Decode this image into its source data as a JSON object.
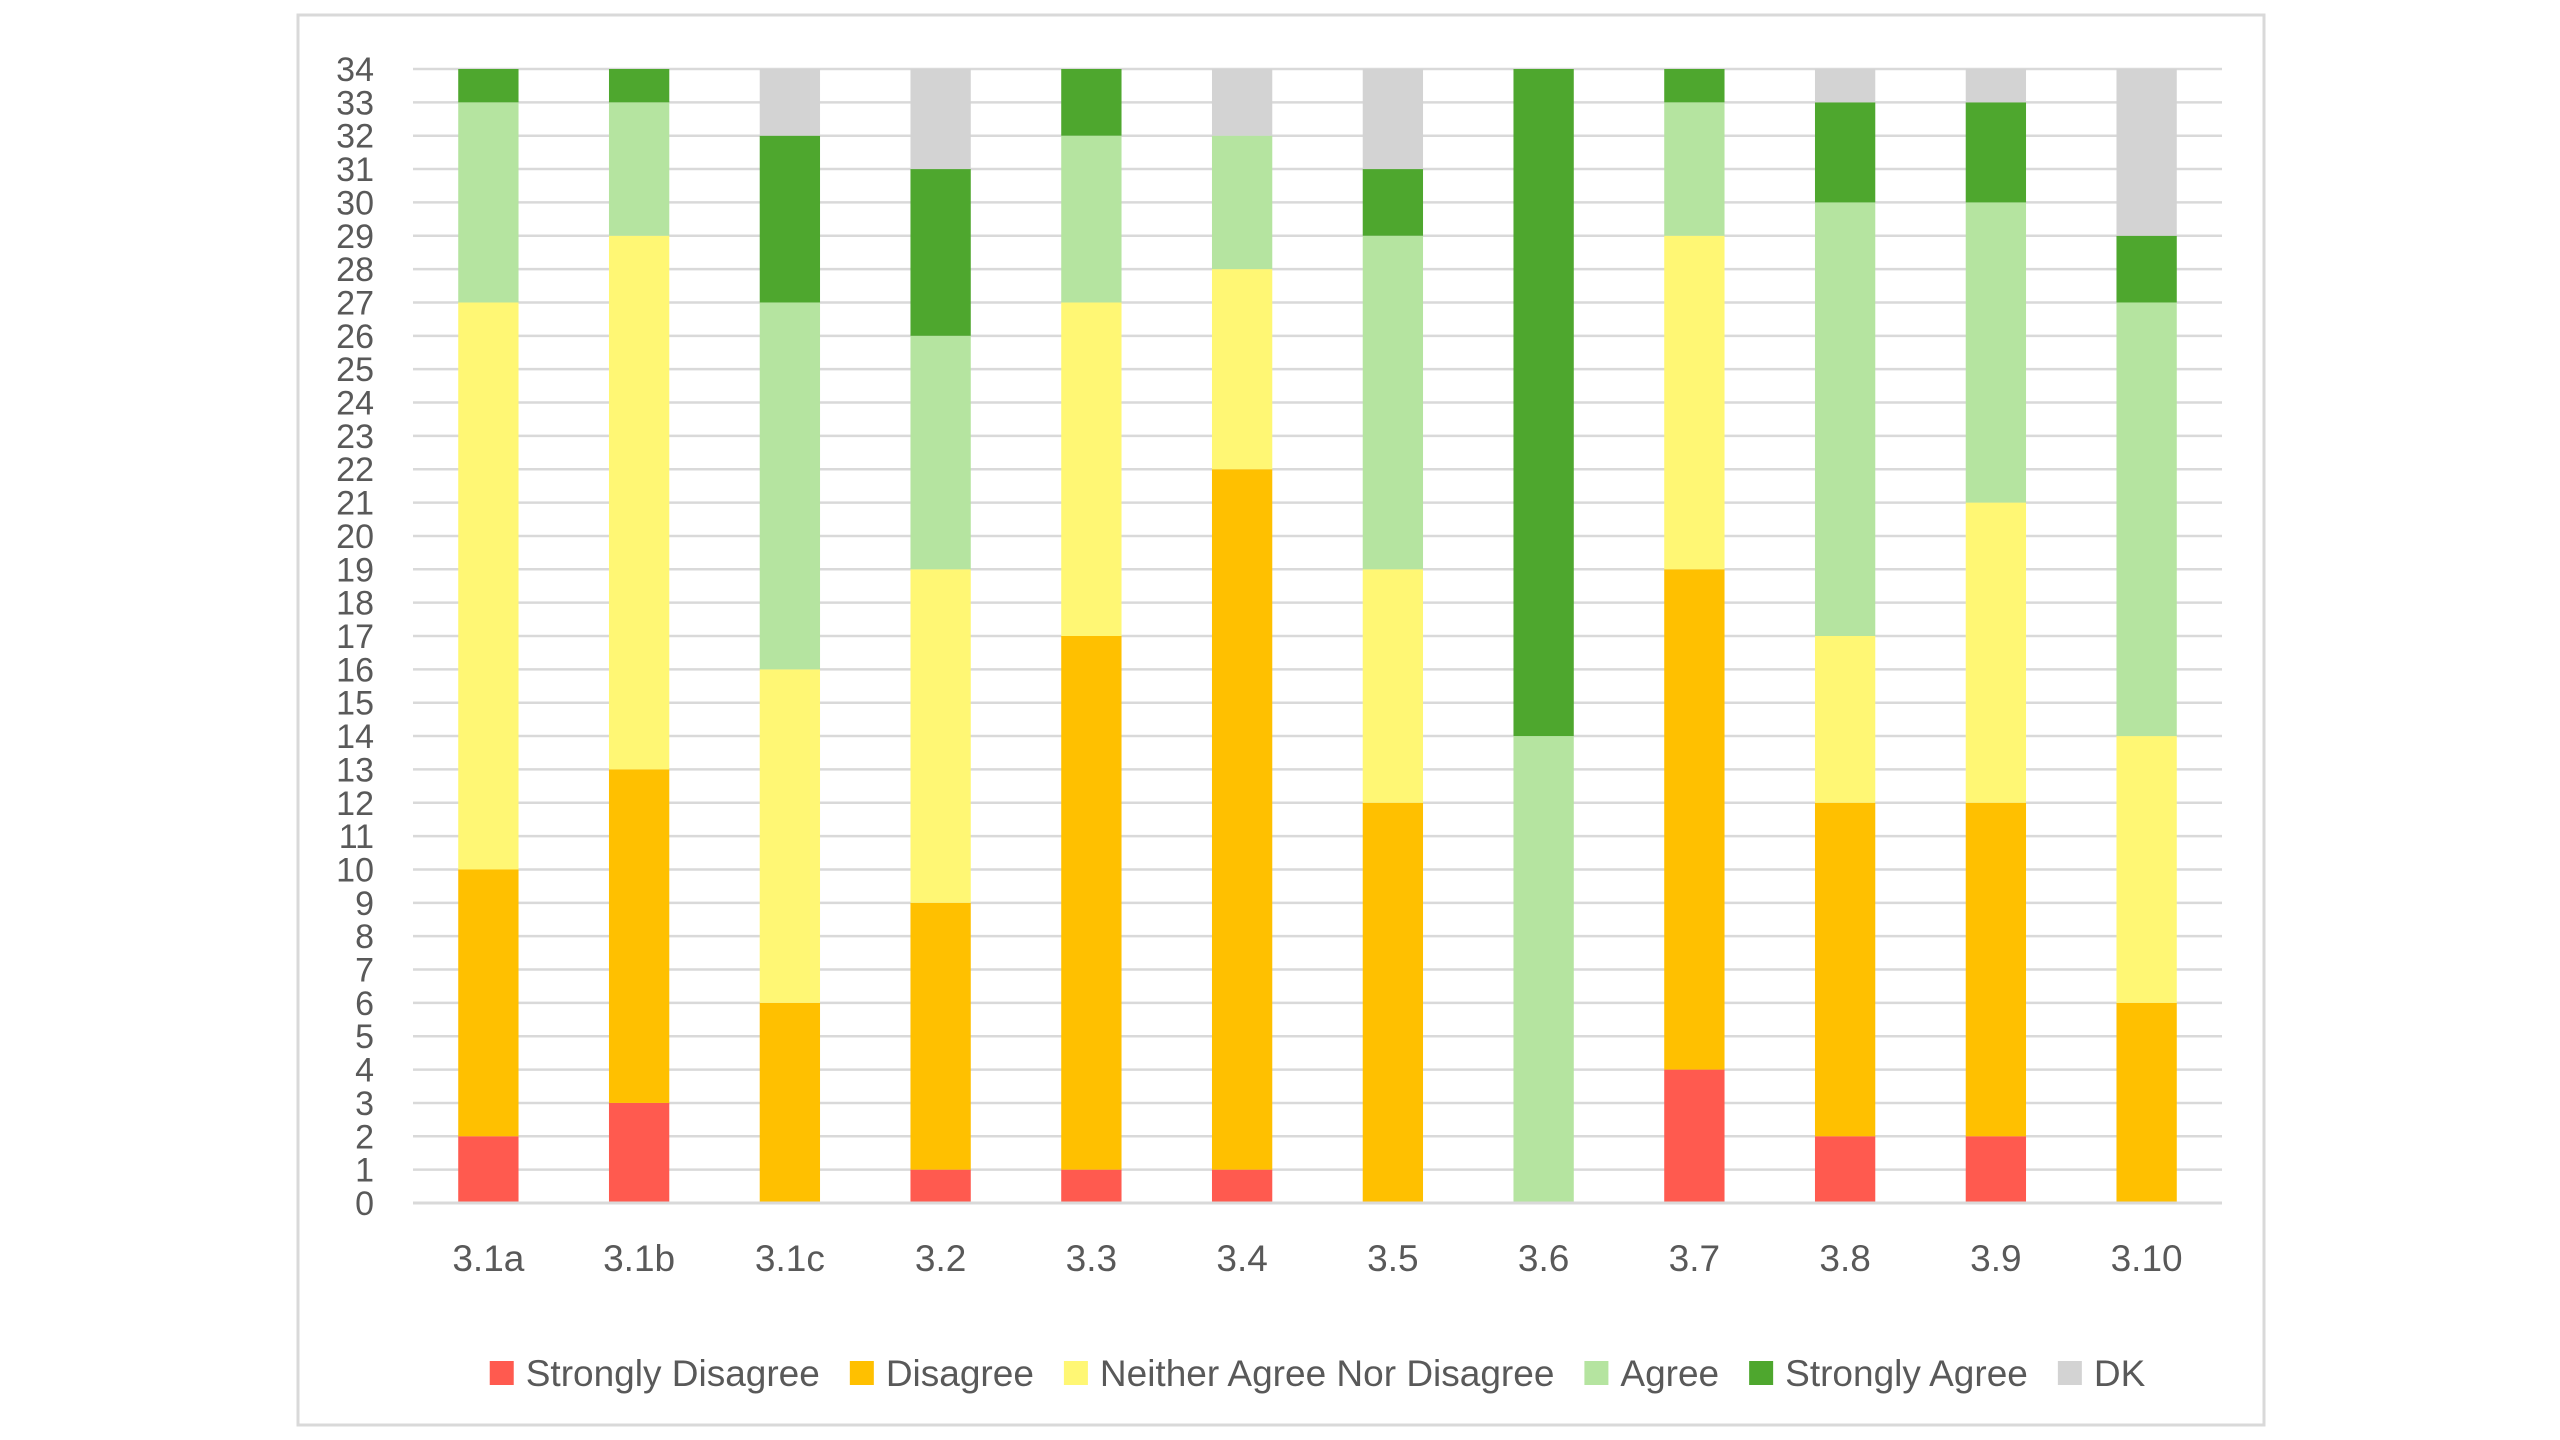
{
  "chart_data": {
    "type": "bar",
    "stacked": true,
    "title": "",
    "xlabel": "",
    "ylabel": "",
    "ylim": [
      0,
      34
    ],
    "yticks": [
      0,
      1,
      2,
      3,
      4,
      5,
      6,
      7,
      8,
      9,
      10,
      11,
      12,
      13,
      14,
      15,
      16,
      17,
      18,
      19,
      20,
      21,
      22,
      23,
      24,
      25,
      26,
      27,
      28,
      29,
      30,
      31,
      32,
      33,
      34
    ],
    "grid": "horizontal",
    "legend_position": "bottom",
    "categories": [
      "3.1a",
      "3.1b",
      "3.1c",
      "3.2",
      "3.3",
      "3.4",
      "3.5",
      "3.6",
      "3.7",
      "3.8",
      "3.9",
      "3.10"
    ],
    "series": [
      {
        "name": "Strongly Disagree",
        "color": "#ff5a4f",
        "values": [
          2,
          3,
          0,
          1,
          1,
          1,
          0,
          0,
          4,
          2,
          2,
          0
        ]
      },
      {
        "name": "Disagree",
        "color": "#ffc000",
        "values": [
          8,
          10,
          6,
          8,
          16,
          21,
          12,
          0,
          15,
          10,
          10,
          6
        ]
      },
      {
        "name": "Neither Agree Nor Disagree",
        "color": "#fff774",
        "values": [
          17,
          16,
          10,
          10,
          10,
          6,
          7,
          0,
          10,
          5,
          9,
          8
        ]
      },
      {
        "name": "Agree",
        "color": "#b5e4a0",
        "values": [
          6,
          4,
          11,
          7,
          5,
          4,
          10,
          14,
          4,
          13,
          9,
          13
        ]
      },
      {
        "name": "Strongly Agree",
        "color": "#4ea72e",
        "values": [
          1,
          1,
          5,
          5,
          2,
          0,
          2,
          20,
          1,
          3,
          3,
          2
        ]
      },
      {
        "name": "DK",
        "color": "#d3d3d3",
        "values": [
          0,
          0,
          2,
          3,
          0,
          2,
          3,
          0,
          0,
          1,
          1,
          5
        ]
      }
    ]
  }
}
